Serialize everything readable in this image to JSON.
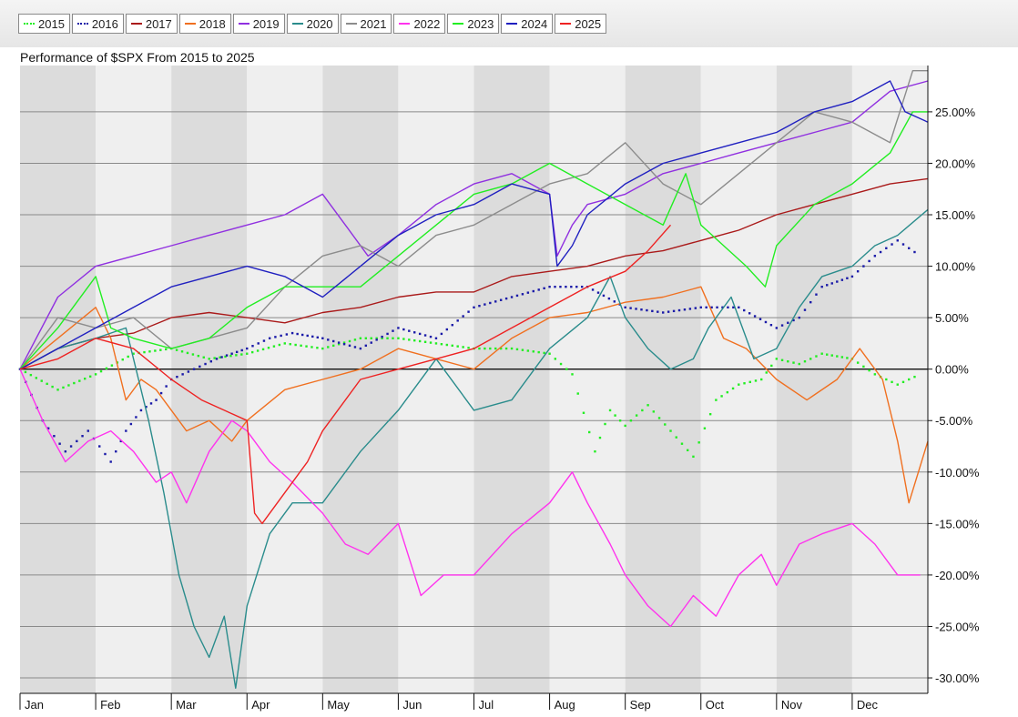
{
  "chart_data": {
    "type": "line",
    "title": "Performance of $SPX From 2015 to 2025",
    "xlabel": "",
    "ylabel": "",
    "months": [
      "Jan",
      "Feb",
      "Mar",
      "Apr",
      "May",
      "Jun",
      "Jul",
      "Aug",
      "Sep",
      "Oct",
      "Nov",
      "Dec"
    ],
    "y_ticks": [
      -30,
      -25,
      -20,
      -15,
      -10,
      -5,
      0,
      5,
      10,
      15,
      20,
      25
    ],
    "y_tick_labels": [
      "-30.00%",
      "-25.00%",
      "-20.00%",
      "-15.00%",
      "-10.00%",
      "-5.00%",
      "0.00%",
      "5.00%",
      "10.00%",
      "15.00%",
      "20.00%",
      "25.00%"
    ],
    "ylim": [
      -31.5,
      29.5
    ],
    "xlim": [
      0,
      12
    ],
    "legend_position": "top",
    "series": [
      {
        "name": "2015",
        "color": "#22ee22",
        "style": "dotted",
        "x": [
          0,
          0.5,
          1,
          1.5,
          2,
          2.5,
          3,
          3.5,
          4,
          4.5,
          5,
          5.5,
          6,
          6.5,
          7,
          7.3,
          7.6,
          7.8,
          8,
          8.3,
          8.6,
          8.9,
          9.2,
          9.5,
          9.8,
          10,
          10.3,
          10.6,
          11,
          11.3,
          11.6,
          11.9
        ],
        "y": [
          0,
          -2,
          -0.5,
          1.5,
          2,
          1,
          1.5,
          2.5,
          2,
          3,
          3,
          2.5,
          2,
          2,
          1.5,
          -0.5,
          -8,
          -4,
          -5.5,
          -3.5,
          -6,
          -8.5,
          -3,
          -1.5,
          -1,
          1,
          0.5,
          1.5,
          1,
          -0.5,
          -1.5,
          -0.5
        ]
      },
      {
        "name": "2016",
        "color": "#1a1aa8",
        "style": "dotted",
        "x": [
          0,
          0.3,
          0.6,
          0.9,
          1.2,
          1.4,
          1.6,
          1.8,
          2,
          2.3,
          2.6,
          3,
          3.3,
          3.6,
          4,
          4.5,
          5,
          5.5,
          6,
          6.5,
          7,
          7.5,
          8,
          8.5,
          9,
          9.5,
          10,
          10.3,
          10.6,
          11,
          11.3,
          11.6,
          11.9
        ],
        "y": [
          0,
          -5,
          -8,
          -6,
          -9,
          -6,
          -4,
          -3,
          -1,
          0,
          1,
          2,
          3,
          3.5,
          3,
          2,
          4,
          3,
          6,
          7,
          8,
          8,
          6,
          5.5,
          6,
          6,
          4,
          5,
          8,
          9,
          11,
          12.5,
          11
        ]
      },
      {
        "name": "2017",
        "color": "#aa1a1a",
        "style": "solid",
        "x": [
          0,
          0.5,
          1,
          1.5,
          2,
          2.5,
          3,
          3.5,
          4,
          4.5,
          5,
          5.5,
          6,
          6.5,
          7,
          7.5,
          8,
          8.5,
          9,
          9.5,
          10,
          10.5,
          11,
          11.5,
          12
        ],
        "y": [
          0,
          2,
          3,
          3.5,
          5,
          5.5,
          5,
          4.5,
          5.5,
          6,
          7,
          7.5,
          7.5,
          9,
          9.5,
          10,
          11,
          11.5,
          12.5,
          13.5,
          15,
          16,
          17,
          18,
          18.5
        ]
      },
      {
        "name": "2018",
        "color": "#f07020",
        "style": "solid",
        "x": [
          0,
          0.5,
          1,
          1.2,
          1.4,
          1.6,
          1.8,
          2,
          2.2,
          2.5,
          2.8,
          3,
          3.5,
          4,
          4.5,
          5,
          5.5,
          6,
          6.5,
          7,
          7.5,
          8,
          8.5,
          9,
          9.3,
          9.6,
          10,
          10.4,
          10.8,
          11.1,
          11.4,
          11.6,
          11.75,
          12
        ],
        "y": [
          0,
          3,
          6,
          3,
          -3,
          -1,
          -2,
          -4,
          -6,
          -5,
          -7,
          -5,
          -2,
          -1,
          0,
          2,
          1,
          0,
          3,
          5,
          5.5,
          6.5,
          7,
          8,
          3,
          2,
          -1,
          -3,
          -1,
          2,
          -1,
          -7,
          -13,
          -7
        ]
      },
      {
        "name": "2019",
        "color": "#9030e0",
        "style": "solid",
        "x": [
          0,
          0.5,
          1,
          1.5,
          2,
          2.5,
          3,
          3.5,
          4,
          4.3,
          4.6,
          5,
          5.5,
          6,
          6.5,
          7,
          7.1,
          7.3,
          7.5,
          8,
          8.5,
          9,
          9.5,
          10,
          10.5,
          11,
          11.5,
          12
        ],
        "y": [
          0,
          7,
          10,
          11,
          12,
          13,
          14,
          15,
          17,
          14,
          11,
          13,
          16,
          18,
          19,
          17,
          11,
          14,
          16,
          17,
          19,
          20,
          21,
          22,
          23,
          24,
          27,
          28
        ]
      },
      {
        "name": "2020",
        "color": "#2a8c8c",
        "style": "solid",
        "x": [
          0,
          0.5,
          1,
          1.4,
          1.7,
          1.9,
          2.1,
          2.3,
          2.5,
          2.7,
          2.85,
          3,
          3.3,
          3.6,
          4,
          4.5,
          5,
          5.5,
          6,
          6.5,
          7,
          7.5,
          7.8,
          8,
          8.3,
          8.6,
          8.9,
          9.1,
          9.4,
          9.7,
          10,
          10.3,
          10.6,
          11,
          11.3,
          11.6,
          12
        ],
        "y": [
          0,
          2,
          3,
          4,
          -5,
          -12,
          -20,
          -25,
          -28,
          -24,
          -31,
          -23,
          -16,
          -13,
          -13,
          -8,
          -4,
          1,
          -4,
          -3,
          2,
          5,
          9,
          5,
          2,
          0,
          1,
          4,
          7,
          1,
          2,
          6,
          9,
          10,
          12,
          13,
          15.5
        ]
      },
      {
        "name": "2021",
        "color": "#8c8c8c",
        "style": "solid",
        "x": [
          0,
          0.5,
          1,
          1.5,
          2,
          2.5,
          3,
          3.5,
          4,
          4.5,
          5,
          5.5,
          6,
          6.5,
          7,
          7.5,
          8,
          8.5,
          9,
          9.5,
          10,
          10.5,
          11,
          11.5,
          11.8,
          12
        ],
        "y": [
          0,
          5,
          4,
          5,
          2,
          3,
          4,
          8,
          11,
          12,
          10,
          13,
          14,
          16,
          18,
          19,
          22,
          18,
          16,
          19,
          22,
          25,
          24,
          22,
          29,
          29
        ]
      },
      {
        "name": "2022",
        "color": "#ff33ee",
        "style": "solid",
        "x": [
          0,
          0.3,
          0.6,
          0.9,
          1.2,
          1.5,
          1.8,
          2,
          2.2,
          2.5,
          2.8,
          3,
          3.3,
          3.6,
          4,
          4.3,
          4.6,
          5,
          5.3,
          5.6,
          6,
          6.5,
          7,
          7.3,
          7.5,
          7.8,
          8,
          8.3,
          8.6,
          8.9,
          9.2,
          9.5,
          9.8,
          10,
          10.3,
          10.6,
          11,
          11.3,
          11.6,
          11.9
        ],
        "y": [
          0,
          -5,
          -9,
          -7,
          -6,
          -8,
          -11,
          -10,
          -13,
          -8,
          -5,
          -6,
          -9,
          -11,
          -14,
          -17,
          -18,
          -15,
          -22,
          -20,
          -20,
          -16,
          -13,
          -10,
          -13,
          -17,
          -20,
          -23,
          -25,
          -22,
          -24,
          -20,
          -18,
          -21,
          -17,
          -16,
          -15,
          -17,
          -20,
          -20
        ]
      },
      {
        "name": "2023",
        "color": "#22ee22",
        "style": "solid",
        "x": [
          0,
          0.5,
          1,
          1.2,
          1.5,
          2,
          2.5,
          3,
          3.5,
          4,
          4.5,
          5,
          5.5,
          6,
          6.5,
          7,
          7.5,
          8,
          8.5,
          8.8,
          9,
          9.3,
          9.6,
          9.85,
          10,
          10.5,
          11,
          11.5,
          11.8,
          12
        ],
        "y": [
          0,
          4,
          9,
          4,
          3,
          2,
          3,
          6,
          8,
          8,
          8,
          11,
          14,
          17,
          18,
          20,
          18,
          16,
          14,
          19,
          14,
          12,
          10,
          8,
          12,
          16,
          18,
          21,
          25,
          25
        ]
      },
      {
        "name": "2024",
        "color": "#2020c0",
        "style": "solid",
        "x": [
          0,
          0.5,
          1,
          1.5,
          2,
          2.5,
          3,
          3.5,
          4,
          4.5,
          5,
          5.5,
          6,
          6.5,
          7,
          7.1,
          7.3,
          7.5,
          8,
          8.5,
          9,
          9.5,
          10,
          10.5,
          11,
          11.5,
          11.7,
          12
        ],
        "y": [
          0,
          2,
          4,
          6,
          8,
          9,
          10,
          9,
          7,
          10,
          13,
          15,
          16,
          18,
          17,
          10,
          12,
          15,
          18,
          20,
          21,
          22,
          23,
          25,
          26,
          28,
          25,
          24
        ]
      },
      {
        "name": "2025",
        "color": "#ee2222",
        "style": "solid",
        "x": [
          0,
          0.5,
          1,
          1.5,
          2,
          2.2,
          2.4,
          2.7,
          3,
          3.1,
          3.2,
          3.5,
          3.8,
          4,
          4.5,
          5,
          5.5,
          6,
          6.5,
          7,
          7.5,
          8,
          8.3,
          8.6
        ],
        "y": [
          0,
          1,
          3,
          2,
          -1,
          -2,
          -3,
          -4,
          -5,
          -14,
          -15,
          -12,
          -9,
          -6,
          -1,
          0,
          1,
          2,
          4,
          6,
          8,
          9.5,
          11.5,
          14
        ]
      }
    ]
  }
}
